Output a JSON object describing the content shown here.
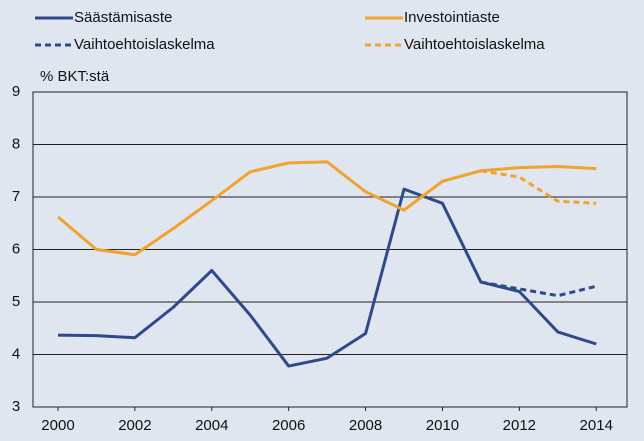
{
  "chart_data": {
    "type": "line",
    "y_label": "% BKT:stä",
    "x": [
      2000,
      2001,
      2002,
      2003,
      2004,
      2005,
      2006,
      2007,
      2008,
      2009,
      2010,
      2011,
      2012,
      2013,
      2014
    ],
    "series": [
      {
        "name": "Säästämisaste",
        "color": "#2e4a8a",
        "dashed": false,
        "values": [
          4.37,
          4.36,
          4.32,
          4.9,
          5.6,
          4.75,
          3.78,
          3.93,
          4.4,
          7.15,
          6.88,
          5.38,
          5.2,
          4.43,
          4.2
        ]
      },
      {
        "name": "Investointiaste",
        "color": "#f0a32f",
        "dashed": false,
        "values": [
          6.62,
          6.0,
          5.9,
          6.4,
          6.93,
          7.48,
          7.65,
          7.67,
          7.1,
          6.75,
          7.3,
          7.5,
          7.56,
          7.58,
          7.54
        ]
      },
      {
        "name": "Vaihtoehtoislaskelma",
        "color": "#2e4a8a",
        "dashed": true,
        "values": [
          null,
          null,
          null,
          null,
          null,
          null,
          null,
          null,
          null,
          null,
          null,
          5.38,
          5.25,
          5.12,
          5.3
        ]
      },
      {
        "name": "Vaihtoehtoislaskelma",
        "color": "#f0a32f",
        "dashed": true,
        "values": [
          null,
          null,
          null,
          null,
          null,
          null,
          null,
          null,
          null,
          null,
          null,
          7.5,
          7.38,
          6.92,
          6.88
        ]
      }
    ],
    "xlim": [
      1999.35,
      2014.8
    ],
    "xticks": [
      2000,
      2002,
      2004,
      2006,
      2008,
      2010,
      2012,
      2014
    ],
    "ylim": [
      3,
      9
    ],
    "yticks": [
      3,
      4,
      5,
      6,
      7,
      8,
      9
    ],
    "grid": true
  }
}
